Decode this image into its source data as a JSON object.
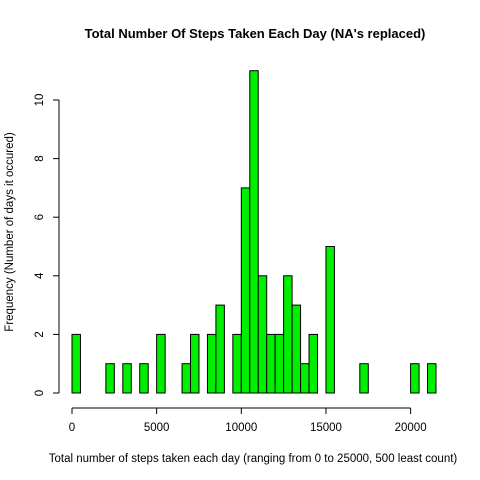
{
  "chart_data": {
    "type": "bar",
    "title": "Total Number Of Steps Taken Each Day (NA's replaced)",
    "xlabel": "Total number of steps taken each day (ranging from 0 to 25000, 500 least count)",
    "ylabel": "Frequency (Number of days it occured)",
    "bin_width": 500,
    "bin_starts": [
      0,
      2000,
      3000,
      4000,
      5000,
      6500,
      7000,
      8000,
      8500,
      9500,
      10000,
      10500,
      11000,
      11500,
      12000,
      12500,
      13000,
      13500,
      14000,
      15000,
      17000,
      20000,
      21000
    ],
    "values": [
      2,
      1,
      1,
      1,
      2,
      1,
      2,
      2,
      3,
      2,
      7,
      11,
      4,
      2,
      2,
      4,
      3,
      1,
      2,
      5,
      1,
      1,
      1
    ],
    "xlim": [
      0,
      21500
    ],
    "ylim": [
      0,
      11
    ],
    "x_ticks": [
      0,
      5000,
      10000,
      15000,
      20000
    ],
    "x_tick_labels": [
      "0",
      "5000",
      "10000",
      "15000",
      "20000"
    ],
    "y_ticks": [
      0,
      2,
      4,
      6,
      8,
      10
    ],
    "y_tick_labels": [
      "0",
      "2",
      "4",
      "6",
      "8",
      "10"
    ],
    "grid": false,
    "bar_color": "#00ee00",
    "bar_border_color": "#000000"
  }
}
